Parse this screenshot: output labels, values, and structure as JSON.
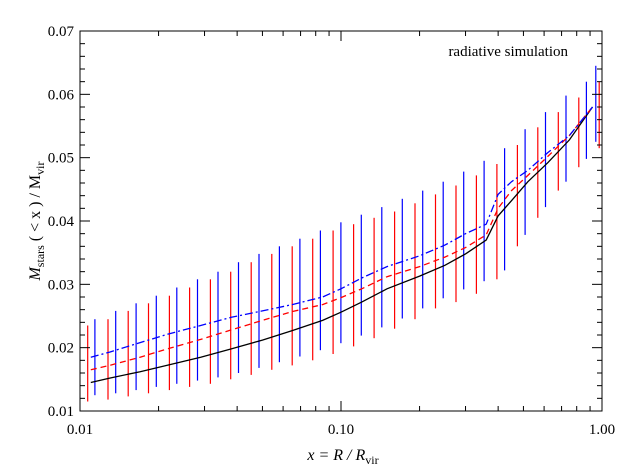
{
  "chart_data": {
    "type": "line",
    "x_scale": "log",
    "xlim": [
      0.01,
      1.0
    ],
    "ylim": [
      0.01,
      0.07
    ],
    "xticks": [
      {
        "value": 0.01,
        "label": "0.01"
      },
      {
        "value": 0.1,
        "label": "0.10"
      },
      {
        "value": 1.0,
        "label": "1.00"
      }
    ],
    "yticks": [
      {
        "value": 0.01,
        "label": "0.01"
      },
      {
        "value": 0.02,
        "label": "0.02"
      },
      {
        "value": 0.03,
        "label": "0.03"
      },
      {
        "value": 0.04,
        "label": "0.04"
      },
      {
        "value": 0.05,
        "label": "0.05"
      },
      {
        "value": 0.06,
        "label": "0.06"
      },
      {
        "value": 0.07,
        "label": "0.07"
      }
    ],
    "xlabel": {
      "main": "x = R / R",
      "sub": "vir"
    },
    "ylabel": {
      "main": "M",
      "sub1": "stars",
      "mid": " ( < x ) / M",
      "sub2": "vir"
    },
    "annotation": "radiative simulation",
    "grid": false,
    "series": [
      {
        "style": "solid",
        "color": "#000000",
        "x": [
          0.011,
          0.013,
          0.017,
          0.022,
          0.029,
          0.038,
          0.05,
          0.065,
          0.085,
          0.1,
          0.12,
          0.15,
          0.2,
          0.25,
          0.3,
          0.36,
          0.4,
          0.45,
          0.52,
          0.62,
          0.75,
          0.92
        ],
        "y": [
          0.0145,
          0.0152,
          0.0162,
          0.0173,
          0.0185,
          0.0198,
          0.0212,
          0.0227,
          0.0243,
          0.0256,
          0.0272,
          0.0293,
          0.0313,
          0.033,
          0.0348,
          0.037,
          0.0408,
          0.0432,
          0.0462,
          0.0492,
          0.0528,
          0.058
        ]
      },
      {
        "style": "dashed",
        "color": "#ff0000",
        "x": [
          0.011,
          0.013,
          0.017,
          0.022,
          0.029,
          0.038,
          0.05,
          0.065,
          0.085,
          0.1,
          0.12,
          0.15,
          0.2,
          0.25,
          0.3,
          0.36,
          0.4,
          0.45,
          0.52,
          0.62,
          0.75,
          0.92
        ],
        "y": [
          0.0165,
          0.0172,
          0.0185,
          0.0199,
          0.0213,
          0.0228,
          0.0243,
          0.0257,
          0.0268,
          0.0279,
          0.0293,
          0.0312,
          0.0328,
          0.0343,
          0.0358,
          0.0378,
          0.042,
          0.0448,
          0.0472,
          0.0502,
          0.0535,
          0.058
        ]
      },
      {
        "style": "dashdot",
        "color": "#0000ff",
        "x": [
          0.011,
          0.013,
          0.017,
          0.022,
          0.029,
          0.038,
          0.05,
          0.065,
          0.085,
          0.1,
          0.12,
          0.15,
          0.2,
          0.25,
          0.3,
          0.36,
          0.4,
          0.45,
          0.52,
          0.62,
          0.75,
          0.92
        ],
        "y": [
          0.0185,
          0.0193,
          0.0208,
          0.0222,
          0.0235,
          0.0248,
          0.0258,
          0.0268,
          0.028,
          0.0293,
          0.031,
          0.0328,
          0.0345,
          0.0362,
          0.038,
          0.0395,
          0.0442,
          0.0462,
          0.048,
          0.0508,
          0.0535,
          0.058
        ]
      }
    ],
    "error_bars": [
      {
        "color": "#ff0000",
        "x": [
          0.0107,
          0.0128,
          0.0153,
          0.0183,
          0.022,
          0.0263,
          0.0316,
          0.0378,
          0.0453,
          0.0543,
          0.065,
          0.0779,
          0.0933,
          0.1118,
          0.1339,
          0.1604,
          0.1921,
          0.2301,
          0.2757,
          0.3302,
          0.3956,
          0.4739,
          0.5677,
          0.6801,
          0.8147,
          0.976
        ],
        "low": [
          0.0115,
          0.0118,
          0.0123,
          0.0128,
          0.0133,
          0.0138,
          0.0143,
          0.015,
          0.0157,
          0.0165,
          0.0172,
          0.018,
          0.019,
          0.0202,
          0.0215,
          0.023,
          0.0245,
          0.0262,
          0.0272,
          0.0285,
          0.0308,
          0.036,
          0.0405,
          0.0448,
          0.0485,
          0.0515
        ],
        "high": [
          0.0235,
          0.0245,
          0.0258,
          0.027,
          0.0282,
          0.0295,
          0.0308,
          0.032,
          0.0335,
          0.0348,
          0.036,
          0.0372,
          0.0385,
          0.0395,
          0.0405,
          0.0415,
          0.0428,
          0.0442,
          0.0456,
          0.0472,
          0.049,
          0.052,
          0.0548,
          0.0572,
          0.0595,
          0.062
        ]
      },
      {
        "color": "#0000ff",
        "x": [
          0.0114,
          0.0137,
          0.0164,
          0.0196,
          0.0235,
          0.0282,
          0.0338,
          0.0405,
          0.0485,
          0.0581,
          0.0696,
          0.0834,
          0.0999,
          0.1196,
          0.1433,
          0.1717,
          0.2056,
          0.2463,
          0.2951,
          0.3535,
          0.4234,
          0.5072,
          0.6076,
          0.7279,
          0.8718,
          0.9465
        ],
        "low": [
          0.0125,
          0.0128,
          0.0133,
          0.0138,
          0.0143,
          0.0148,
          0.0153,
          0.016,
          0.0168,
          0.0177,
          0.0186,
          0.0196,
          0.0207,
          0.0219,
          0.0232,
          0.0246,
          0.0262,
          0.0278,
          0.0292,
          0.0305,
          0.0322,
          0.0378,
          0.0422,
          0.0462,
          0.0498,
          0.0525
        ],
        "high": [
          0.0245,
          0.0258,
          0.027,
          0.0282,
          0.0295,
          0.0308,
          0.032,
          0.0335,
          0.0348,
          0.036,
          0.0372,
          0.0385,
          0.0398,
          0.041,
          0.0422,
          0.0435,
          0.0448,
          0.0462,
          0.0478,
          0.0495,
          0.0515,
          0.0545,
          0.0572,
          0.0598,
          0.062,
          0.0645
        ]
      }
    ]
  }
}
